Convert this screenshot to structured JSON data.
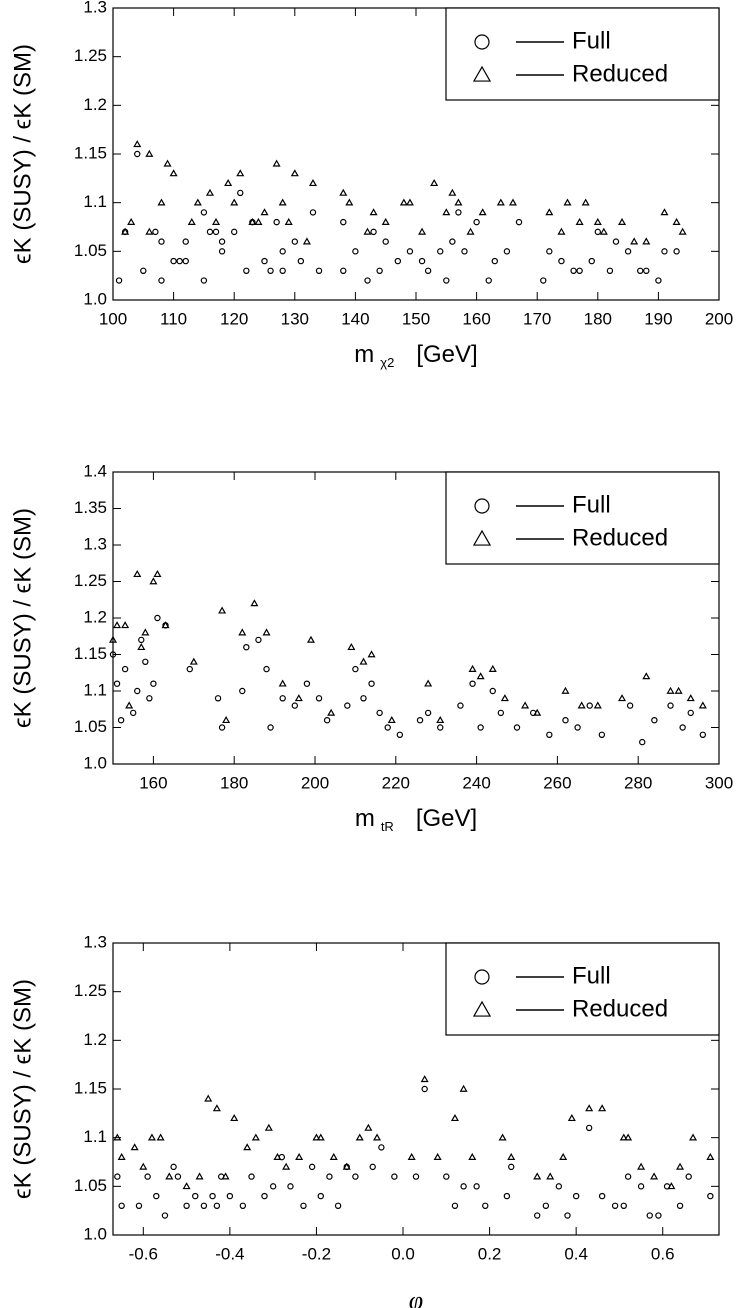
{
  "chart_data": [
    {
      "type": "scatter",
      "xlabel": "m",
      "xlabel_sub": "χ2",
      "xlabel_unit": "[GeV]",
      "ylabel": "ϵK (SUSY) / ϵK (SM)",
      "xlim": [
        100,
        200
      ],
      "ylim": [
        1.0,
        1.3
      ],
      "xticks": [
        100,
        110,
        120,
        130,
        140,
        150,
        160,
        170,
        180,
        190,
        200
      ],
      "yticks": [
        {
          "value": 1.0,
          "label": "1.0"
        },
        1.05,
        1.1,
        1.15,
        1.2,
        1.25,
        1.3
      ],
      "legend": "upper right",
      "series": [
        {
          "name": "Full",
          "marker": "circle",
          "color": "#000000",
          "x": [
            101,
            102,
            104,
            105,
            107,
            108,
            108,
            110,
            111,
            112,
            112,
            115,
            115,
            116,
            117,
            118,
            118,
            120,
            121,
            122,
            123,
            125,
            126,
            127,
            128,
            128,
            130,
            131,
            133,
            134,
            138,
            138,
            140,
            142,
            143,
            144,
            145,
            147,
            149,
            151,
            152,
            154,
            155,
            156,
            157,
            158,
            160,
            162,
            163,
            165,
            167,
            171,
            172,
            174,
            176,
            177,
            179,
            180,
            182,
            183,
            185,
            187,
            188,
            190,
            191,
            193
          ],
          "values": [
            1.02,
            1.07,
            1.15,
            1.03,
            1.07,
            1.02,
            1.06,
            1.04,
            1.04,
            1.06,
            1.04,
            1.02,
            1.09,
            1.07,
            1.07,
            1.05,
            1.06,
            1.07,
            1.11,
            1.03,
            1.08,
            1.04,
            1.03,
            1.08,
            1.03,
            1.05,
            1.06,
            1.04,
            1.09,
            1.03,
            1.08,
            1.03,
            1.05,
            1.02,
            1.07,
            1.03,
            1.06,
            1.04,
            1.05,
            1.04,
            1.03,
            1.05,
            1.02,
            1.06,
            1.09,
            1.05,
            1.08,
            1.02,
            1.04,
            1.05,
            1.08,
            1.02,
            1.05,
            1.04,
            1.03,
            1.03,
            1.04,
            1.07,
            1.03,
            1.06,
            1.05,
            1.03,
            1.03,
            1.02,
            1.05,
            1.05
          ]
        },
        {
          "name": "Reduced",
          "marker": "triangle",
          "color": "#000000",
          "x": [
            102,
            103,
            104,
            106,
            106,
            108,
            109,
            110,
            113,
            114,
            116,
            117,
            119,
            120,
            121,
            123,
            124,
            125,
            127,
            128,
            129,
            130,
            132,
            133,
            138,
            139,
            142,
            143,
            145,
            148,
            149,
            151,
            153,
            155,
            156,
            157,
            159,
            161,
            164,
            166,
            172,
            174,
            175,
            177,
            178,
            180,
            181,
            184,
            186,
            188,
            191,
            193,
            194
          ],
          "values": [
            1.07,
            1.08,
            1.16,
            1.07,
            1.15,
            1.1,
            1.14,
            1.13,
            1.08,
            1.1,
            1.11,
            1.08,
            1.12,
            1.1,
            1.13,
            1.08,
            1.08,
            1.09,
            1.14,
            1.1,
            1.08,
            1.13,
            1.06,
            1.12,
            1.11,
            1.1,
            1.07,
            1.09,
            1.08,
            1.1,
            1.1,
            1.07,
            1.12,
            1.09,
            1.11,
            1.1,
            1.07,
            1.09,
            1.1,
            1.1,
            1.09,
            1.07,
            1.1,
            1.08,
            1.1,
            1.08,
            1.07,
            1.08,
            1.06,
            1.06,
            1.09,
            1.08,
            1.07
          ]
        }
      ]
    },
    {
      "type": "scatter",
      "xlabel": "m",
      "xlabel_sub": "tR",
      "xlabel_unit": "[GeV]",
      "ylabel": "ϵK (SUSY) / ϵK (SM)",
      "xlim": [
        150,
        300
      ],
      "ylim": [
        1.0,
        1.4
      ],
      "xticks": [
        160,
        180,
        200,
        220,
        240,
        260,
        280,
        300
      ],
      "yticks": [
        {
          "value": 1.0,
          "label": "1.0"
        },
        1.05,
        1.1,
        1.15,
        1.2,
        1.25,
        1.3,
        1.35,
        1.4
      ],
      "legend": "upper right",
      "series": [
        {
          "name": "Full",
          "marker": "circle",
          "color": "#000000",
          "x": [
            150,
            151,
            152,
            153,
            155,
            156,
            157,
            158,
            159,
            160,
            161,
            163,
            169,
            176,
            177,
            182,
            183,
            186,
            188,
            189,
            192,
            195,
            198,
            201,
            203,
            208,
            210,
            212,
            214,
            216,
            218,
            221,
            226,
            228,
            231,
            236,
            239,
            241,
            244,
            246,
            250,
            254,
            258,
            262,
            265,
            268,
            271,
            278,
            281,
            284,
            288,
            291,
            293,
            296
          ],
          "values": [
            1.15,
            1.11,
            1.06,
            1.13,
            1.07,
            1.1,
            1.17,
            1.14,
            1.09,
            1.11,
            1.2,
            1.19,
            1.13,
            1.09,
            1.05,
            1.1,
            1.16,
            1.17,
            1.13,
            1.05,
            1.09,
            1.08,
            1.11,
            1.09,
            1.06,
            1.08,
            1.13,
            1.09,
            1.11,
            1.07,
            1.05,
            1.04,
            1.06,
            1.07,
            1.05,
            1.08,
            1.11,
            1.05,
            1.1,
            1.07,
            1.05,
            1.07,
            1.04,
            1.06,
            1.05,
            1.08,
            1.04,
            1.08,
            1.03,
            1.06,
            1.08,
            1.05,
            1.07,
            1.04
          ]
        },
        {
          "name": "Reduced",
          "marker": "triangle",
          "color": "#000000",
          "x": [
            150,
            151,
            153,
            154,
            156,
            157,
            158,
            160,
            161,
            163,
            170,
            177,
            178,
            182,
            185,
            188,
            192,
            196,
            199,
            204,
            209,
            212,
            214,
            219,
            228,
            231,
            239,
            241,
            244,
            247,
            252,
            255,
            262,
            266,
            270,
            276,
            282,
            288,
            290,
            293,
            296
          ],
          "values": [
            1.17,
            1.19,
            1.19,
            1.08,
            1.26,
            1.16,
            1.18,
            1.25,
            1.26,
            1.19,
            1.14,
            1.21,
            1.06,
            1.18,
            1.22,
            1.18,
            1.11,
            1.09,
            1.17,
            1.07,
            1.16,
            1.14,
            1.15,
            1.06,
            1.11,
            1.06,
            1.13,
            1.12,
            1.13,
            1.09,
            1.08,
            1.07,
            1.1,
            1.08,
            1.08,
            1.09,
            1.12,
            1.1,
            1.1,
            1.09,
            1.08
          ]
        }
      ]
    },
    {
      "type": "scatter",
      "xlabel": "φ",
      "ylabel": "ϵK (SUSY) / ϵK (SM)",
      "xlim": [
        -0.67,
        0.73
      ],
      "ylim": [
        1.0,
        1.3
      ],
      "xticks": [
        -0.6,
        -0.4,
        -0.2,
        {
          "value": 0,
          "label": "0.0"
        },
        0.2,
        0.4,
        0.6
      ],
      "yticks": [
        {
          "value": 1.0,
          "label": "1.0"
        },
        1.05,
        1.1,
        1.15,
        1.2,
        1.25,
        1.3
      ],
      "legend": "upper right",
      "series": [
        {
          "name": "Full",
          "marker": "circle",
          "color": "#000000",
          "x": [
            -0.66,
            -0.65,
            -0.61,
            -0.59,
            -0.57,
            -0.55,
            -0.53,
            -0.52,
            -0.5,
            -0.48,
            -0.46,
            -0.44,
            -0.43,
            -0.42,
            -0.4,
            -0.37,
            -0.35,
            -0.32,
            -0.3,
            -0.28,
            -0.26,
            -0.23,
            -0.21,
            -0.19,
            -0.17,
            -0.15,
            -0.13,
            -0.11,
            -0.07,
            -0.05,
            -0.02,
            0.03,
            0.05,
            0.1,
            0.12,
            0.14,
            0.17,
            0.19,
            0.24,
            0.25,
            0.31,
            0.33,
            0.36,
            0.38,
            0.4,
            0.43,
            0.46,
            0.49,
            0.51,
            0.52,
            0.55,
            0.57,
            0.59,
            0.61,
            0.64,
            0.66,
            0.71
          ],
          "values": [
            1.06,
            1.03,
            1.03,
            1.06,
            1.04,
            1.02,
            1.07,
            1.06,
            1.03,
            1.04,
            1.03,
            1.04,
            1.03,
            1.06,
            1.04,
            1.03,
            1.06,
            1.04,
            1.05,
            1.08,
            1.05,
            1.03,
            1.07,
            1.04,
            1.06,
            1.03,
            1.07,
            1.06,
            1.07,
            1.09,
            1.06,
            1.06,
            1.15,
            1.06,
            1.03,
            1.05,
            1.05,
            1.03,
            1.04,
            1.07,
            1.02,
            1.03,
            1.05,
            1.02,
            1.04,
            1.11,
            1.04,
            1.03,
            1.03,
            1.06,
            1.05,
            1.02,
            1.02,
            1.05,
            1.03,
            1.06,
            1.04
          ]
        },
        {
          "name": "Reduced",
          "marker": "triangle",
          "color": "#000000",
          "x": [
            -0.66,
            -0.65,
            -0.62,
            -0.6,
            -0.58,
            -0.56,
            -0.54,
            -0.5,
            -0.47,
            -0.45,
            -0.43,
            -0.41,
            -0.39,
            -0.36,
            -0.34,
            -0.31,
            -0.29,
            -0.27,
            -0.24,
            -0.2,
            -0.19,
            -0.16,
            -0.13,
            -0.1,
            -0.08,
            -0.06,
            0.02,
            0.05,
            0.08,
            0.12,
            0.14,
            0.16,
            0.23,
            0.25,
            0.31,
            0.34,
            0.37,
            0.39,
            0.43,
            0.46,
            0.51,
            0.52,
            0.55,
            0.58,
            0.62,
            0.64,
            0.67,
            0.71
          ],
          "values": [
            1.1,
            1.08,
            1.09,
            1.07,
            1.1,
            1.1,
            1.06,
            1.05,
            1.06,
            1.14,
            1.13,
            1.06,
            1.12,
            1.09,
            1.1,
            1.11,
            1.08,
            1.07,
            1.08,
            1.1,
            1.1,
            1.08,
            1.07,
            1.1,
            1.11,
            1.1,
            1.08,
            1.16,
            1.08,
            1.12,
            1.15,
            1.08,
            1.1,
            1.08,
            1.06,
            1.06,
            1.08,
            1.12,
            1.13,
            1.13,
            1.1,
            1.1,
            1.07,
            1.06,
            1.05,
            1.07,
            1.1,
            1.08
          ]
        }
      ]
    }
  ]
}
